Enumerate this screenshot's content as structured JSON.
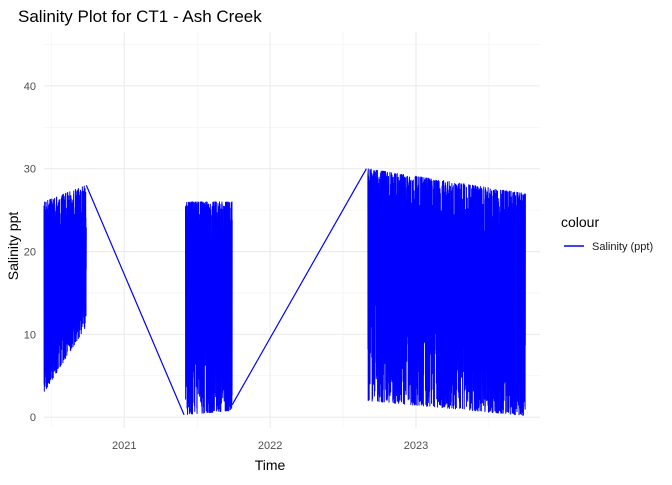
{
  "chart_data": {
    "type": "line",
    "title": "Salinity Plot for CT1 - Ash Creek",
    "xlabel": "Time",
    "ylabel": "Salinity ppt",
    "x_ticks": [
      2021,
      2022,
      2023
    ],
    "x_tick_labels": [
      "2021",
      "2022",
      "2023"
    ],
    "y_ticks": [
      0,
      10,
      20,
      30,
      40
    ],
    "y_tick_labels": [
      "0",
      "10",
      "20",
      "30",
      "40"
    ],
    "xlim": [
      2020.45,
      2023.85
    ],
    "ylim": [
      -1.3,
      46.5
    ],
    "grid": true,
    "legend": {
      "title": "colour",
      "position": "right",
      "entries": [
        {
          "label": "Salinity (ppt)",
          "color": "#0000ff"
        }
      ]
    },
    "series": [
      {
        "name": "Salinity (ppt)",
        "color": "#0000ff",
        "segments": [
          {
            "x_start": 2020.45,
            "x_end": 2020.74,
            "low_start": 3,
            "low_end": 11,
            "high_start": 26,
            "high_end": 28,
            "seed": 11
          },
          {
            "x_start": 2021.42,
            "x_end": 2021.74,
            "low_start": 0.3,
            "low_end": 0.8,
            "high_start": 26,
            "high_end": 26,
            "seed": 23
          },
          {
            "x_start": 2022.67,
            "x_end": 2023.75,
            "low_start": 2,
            "low_end": 0.2,
            "high_start": 30,
            "high_end": 27,
            "seed": 37
          }
        ],
        "connectors": [
          {
            "x": [
              2020.74,
              2021.41
            ],
            "y": [
              28,
              0.3
            ]
          },
          {
            "x": [
              2021.74,
              2022.66
            ],
            "y": [
              1.5,
              30
            ]
          }
        ]
      }
    ]
  }
}
